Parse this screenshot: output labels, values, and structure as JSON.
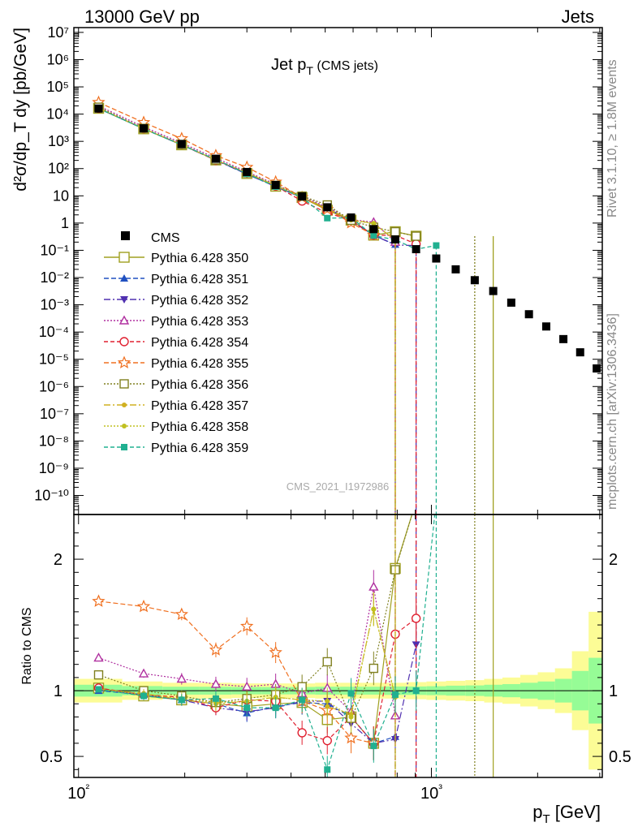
{
  "header": {
    "left": "13000 GeV pp",
    "right": "Jets"
  },
  "side_labels": {
    "rivet": "Rivet 3.1.10, ≥ 1.8M events",
    "mcplots": "mcplots.cern.ch [arXiv:1306.3436]"
  },
  "chart_data": {
    "type": "line",
    "title_main": "Jet p",
    "title_sub": "T",
    "title_extra": "(CMS jets)",
    "watermark": "CMS_2021_I1972986",
    "xlabel": "p",
    "xlabel_sub": "T",
    "xlabel_unit": "[GeV]",
    "ylabel_main": "d²σ/dp_T dy [pb/GeV]",
    "ylabel_ratio": "Ratio to CMS",
    "x_scale": "log",
    "xlim": [
      97,
      3050
    ],
    "ylim_main": [
      2e-11,
      15000000.0
    ],
    "ylim_ratio": [
      0.34,
      2.34
    ],
    "x_ticks": [
      100,
      1000
    ],
    "x_tick_labels": [
      "10²",
      "10³"
    ],
    "y_ticks_main": [
      "10⁷",
      "10⁶",
      "10⁵",
      "10⁴",
      "10³",
      "10²",
      "10",
      "1",
      "10⁻¹",
      "10⁻²",
      "10⁻³",
      "10⁻⁴",
      "10⁻⁵",
      "10⁻⁶",
      "10⁻⁷",
      "10⁻⁸",
      "10⁻⁹",
      "10⁻¹⁰"
    ],
    "y_ticks_ratio": [
      0.5,
      1,
      2
    ],
    "legend_position": "middle-left",
    "cms": {
      "name": "CMS",
      "x": [
        114,
        153,
        196,
        245,
        300,
        362,
        430,
        507,
        592,
        686,
        790,
        905,
        1032,
        1172,
        1327,
        1497,
        1684,
        1890,
        2116,
        2366,
        2640,
        2941
      ],
      "y": [
        16000,
        3000,
        800,
        230,
        75,
        25,
        9.5,
        3.8,
        1.6,
        0.6,
        0.25,
        0.11,
        0.05,
        0.02,
        0.008,
        0.0032,
        0.0012,
        0.00045,
        0.00016,
        5.5e-05,
        1.8e-05,
        4.6e-06
      ]
    },
    "series": [
      {
        "name": "Pythia 6.428 350",
        "color": "#a0a020",
        "dash": "",
        "marker": "sq-open",
        "msize": 6,
        "ratio": [
          1.02,
          0.96,
          0.93,
          0.9,
          0.88,
          0.9,
          0.91,
          0.78,
          0.8,
          0.6,
          1.93,
          3.0
        ],
        "endx": 1497
      },
      {
        "name": "Pythia 6.428 351",
        "color": "#2050c0",
        "dash": "6,3",
        "marker": "tri-up",
        "msize": 5,
        "ratio": [
          1.0,
          0.97,
          0.93,
          0.9,
          0.83,
          0.88,
          0.91,
          0.9,
          0.8,
          0.6,
          0.65
        ],
        "endx": 790
      },
      {
        "name": "Pythia 6.428 352",
        "color": "#5030b0",
        "dash": "8,3,2,3",
        "marker": "tri-down",
        "msize": 5,
        "ratio": [
          1.01,
          0.97,
          0.93,
          0.87,
          0.84,
          0.87,
          0.92,
          0.92,
          0.75,
          0.6,
          0.63,
          1.35
        ],
        "endx": 905
      },
      {
        "name": "Pythia 6.428 353",
        "color": "#b030a0",
        "dash": "2,2",
        "marker": "tri-up-open",
        "msize": 5,
        "ratio": [
          1.25,
          1.13,
          1.09,
          1.05,
          1.03,
          1.05,
          0.98,
          1.02,
          0.84,
          1.79,
          0.81
        ],
        "endx": 790
      },
      {
        "name": "Pythia 6.428 354",
        "color": "#e02030",
        "dash": "5,3",
        "marker": "circ-open",
        "msize": 5,
        "ratio": [
          1.02,
          0.97,
          0.95,
          0.87,
          0.93,
          0.92,
          0.68,
          0.62,
          0.8,
          0.6,
          1.43,
          1.55
        ],
        "endx": 905
      },
      {
        "name": "Pythia 6.428 355",
        "color": "#f07020",
        "dash": "6,3",
        "marker": "star",
        "msize": 7,
        "ratio": [
          1.68,
          1.64,
          1.58,
          1.31,
          1.49,
          1.29,
          0.92,
          0.85,
          0.64,
          0.6
        ],
        "endx": 790
      },
      {
        "name": "Pythia 6.428 356",
        "color": "#808020",
        "dash": "2,2",
        "marker": "sq-open",
        "msize": 5,
        "ratio": [
          1.12,
          1.0,
          0.96,
          0.91,
          0.94,
          0.97,
          1.03,
          1.22,
          0.79,
          1.17,
          1.92,
          3.0
        ],
        "endx": 1327
      },
      {
        "name": "Pythia 6.428 357",
        "color": "#d0b020",
        "dash": "8,3,2,3",
        "marker": "dot",
        "msize": 3,
        "ratio": [
          1.01,
          0.98,
          0.93,
          0.9,
          0.92,
          0.95,
          0.93,
          0.88,
          0.82,
          1.62,
          0.95
        ],
        "endx": 790
      },
      {
        "name": "Pythia 6.428 358",
        "color": "#c0c020",
        "dash": "2,2",
        "marker": "dot",
        "msize": 3,
        "ratio": [
          1.01,
          0.97,
          0.94,
          0.91,
          0.92,
          0.95,
          0.93,
          0.92,
          0.8,
          1.62,
          0.96
        ],
        "endx": 790
      },
      {
        "name": "Pythia 6.428 359",
        "color": "#20b090",
        "dash": "5,3",
        "marker": "sq",
        "msize": 4,
        "ratio": [
          1.01,
          0.96,
          0.93,
          0.94,
          0.87,
          0.87,
          0.93,
          0.4,
          0.98,
          0.58,
          0.97,
          1.0,
          3.0
        ],
        "endx": 1032
      }
    ],
    "band_x_edges": [
      97,
      133,
      173,
      220,
      272,
      330,
      395,
      468,
      549,
      639,
      737,
      847,
      968,
      1100,
      1248,
      1411,
      1590,
      1786,
      2002,
      2240,
      2502,
      2790,
      3050
    ],
    "band_inner": [
      0.045,
      0.035,
      0.03,
      0.03,
      0.028,
      0.028,
      0.028,
      0.03,
      0.03,
      0.03,
      0.032,
      0.032,
      0.034,
      0.038,
      0.04,
      0.045,
      0.05,
      0.06,
      0.07,
      0.09,
      0.15,
      0.25
    ],
    "band_outer": [
      0.09,
      0.07,
      0.06,
      0.06,
      0.055,
      0.055,
      0.055,
      0.06,
      0.06,
      0.06,
      0.06,
      0.065,
      0.07,
      0.075,
      0.08,
      0.09,
      0.1,
      0.12,
      0.14,
      0.17,
      0.3,
      0.6
    ]
  }
}
